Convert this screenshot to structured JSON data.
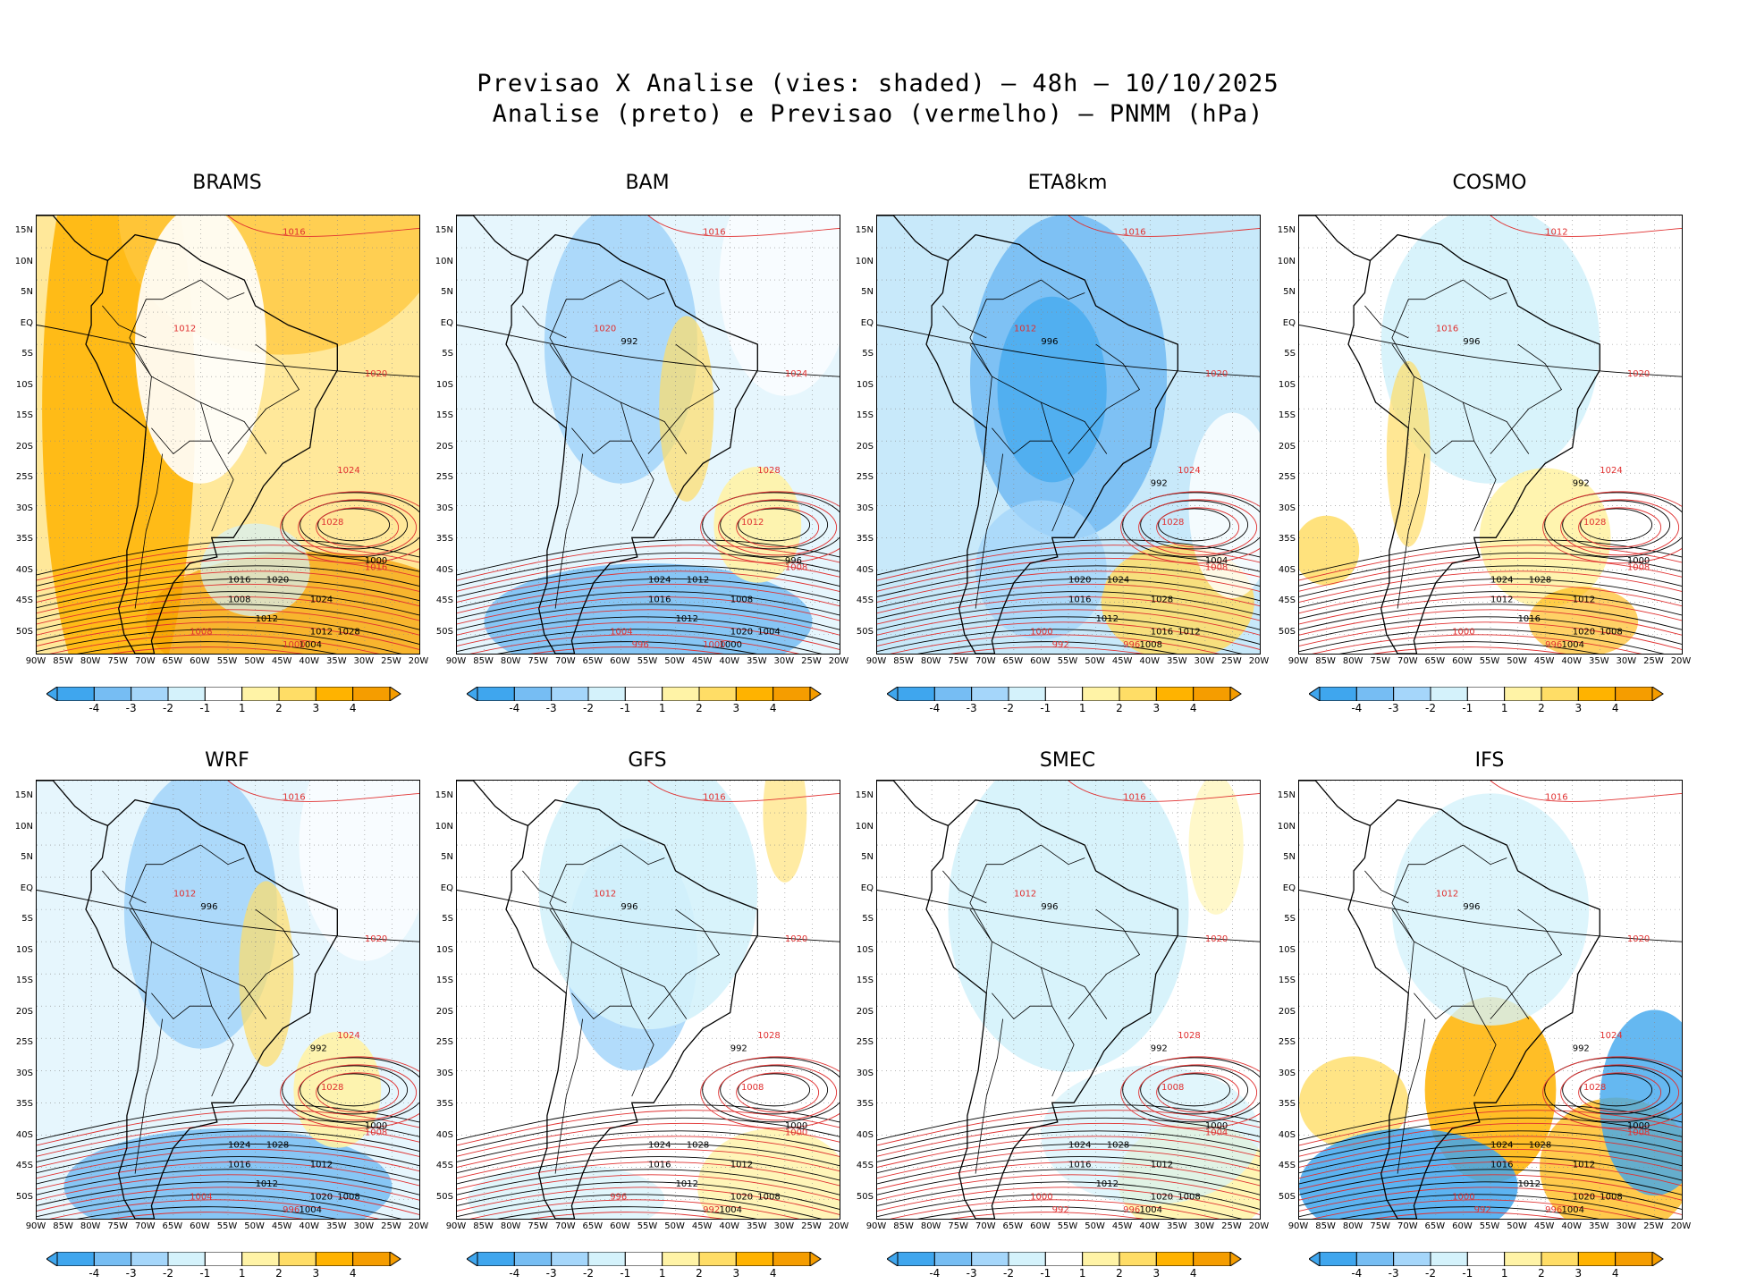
{
  "header": {
    "line1": "Previsao X Analise (vies: shaded) – 48h – 10/10/2025",
    "line2": "Analise (preto) e Previsao (vermelho) – PNMM (hPa)"
  },
  "lat_labels": [
    "15N",
    "10N",
    "5N",
    "EQ",
    "5S",
    "10S",
    "15S",
    "20S",
    "25S",
    "30S",
    "35S",
    "40S",
    "45S",
    "50S"
  ],
  "lon_labels": [
    "90W",
    "85W",
    "80W",
    "75W",
    "70W",
    "65W",
    "60W",
    "55W",
    "50W",
    "45W",
    "40W",
    "35W",
    "30W",
    "25W",
    "20W"
  ],
  "colorbar": {
    "labels": [
      "-4",
      "-3",
      "-2",
      "-1",
      "1",
      "2",
      "3",
      "4"
    ],
    "colors": [
      "#3fa6ee",
      "#76bdf3",
      "#a5d6fa",
      "#d4f2fb",
      "#ffffff",
      "#fff3a6",
      "#ffdd66",
      "#ffb300",
      "#f59d00"
    ]
  },
  "colors": {
    "analysis_contour": "#000000",
    "forecast_contour": "#e03030",
    "neg_bias": "#7cc4f4",
    "pos_bias": "#ffd040"
  },
  "panels": [
    {
      "name": "BRAMS",
      "bias": "warm",
      "labels": {
        "black": [
          "1008",
          "1012",
          "1012",
          "1016",
          "1020",
          "1024",
          "1028",
          "1004",
          "1000"
        ],
        "red": [
          "1016",
          "1012",
          "1020",
          "1024",
          "1028",
          "1016",
          "1008",
          "1000"
        ]
      }
    },
    {
      "name": "BAM",
      "bias": "cool",
      "labels": {
        "black": [
          "1016",
          "1012",
          "1020",
          "1024",
          "1012",
          "1008",
          "1004",
          "1000",
          "996",
          "992"
        ],
        "red": [
          "1016",
          "1020",
          "1024",
          "1028",
          "1012",
          "1008",
          "1004",
          "1000",
          "996"
        ]
      }
    },
    {
      "name": "ETA8km",
      "bias": "strong-cool",
      "labels": {
        "black": [
          "1016",
          "1012",
          "1016",
          "1020",
          "1024",
          "1028",
          "1012",
          "1008",
          "1004",
          "996",
          "992"
        ],
        "red": [
          "1016",
          "1012",
          "1020",
          "1024",
          "1028",
          "1008",
          "1000",
          "996",
          "992"
        ]
      }
    },
    {
      "name": "COSMO",
      "bias": "mixed",
      "labels": {
        "black": [
          "1012",
          "1016",
          "1020",
          "1024",
          "1028",
          "1012",
          "1008",
          "1004",
          "1000",
          "996",
          "992"
        ],
        "red": [
          "1012",
          "1016",
          "1020",
          "1024",
          "1028",
          "1008",
          "1000",
          "996"
        ]
      }
    },
    {
      "name": "WRF",
      "bias": "cool",
      "labels": {
        "black": [
          "1016",
          "1012",
          "1020",
          "1024",
          "1028",
          "1012",
          "1008",
          "1004",
          "1000",
          "996",
          "992"
        ],
        "red": [
          "1016",
          "1012",
          "1020",
          "1024",
          "1028",
          "1008",
          "1004",
          "996"
        ]
      }
    },
    {
      "name": "GFS",
      "bias": "light-cool",
      "labels": {
        "black": [
          "1016",
          "1012",
          "1020",
          "1024",
          "1028",
          "1012",
          "1008",
          "1004",
          "1000",
          "996",
          "992"
        ],
        "red": [
          "1016",
          "1012",
          "1020",
          "1028",
          "1008",
          "1000",
          "996",
          "992"
        ]
      }
    },
    {
      "name": "SMEC",
      "bias": "light",
      "labels": {
        "black": [
          "1016",
          "1012",
          "1020",
          "1024",
          "1028",
          "1012",
          "1008",
          "1004",
          "1000",
          "996",
          "992"
        ],
        "red": [
          "1016",
          "1012",
          "1020",
          "1028",
          "1008",
          "1004",
          "1000",
          "996",
          "992"
        ]
      }
    },
    {
      "name": "IFS",
      "bias": "dipole",
      "labels": {
        "black": [
          "1016",
          "1012",
          "1020",
          "1024",
          "1028",
          "1012",
          "1008",
          "1004",
          "1000",
          "996",
          "992"
        ],
        "red": [
          "1016",
          "1012",
          "1020",
          "1024",
          "1028",
          "1008",
          "1000",
          "996",
          "992"
        ]
      }
    }
  ]
}
